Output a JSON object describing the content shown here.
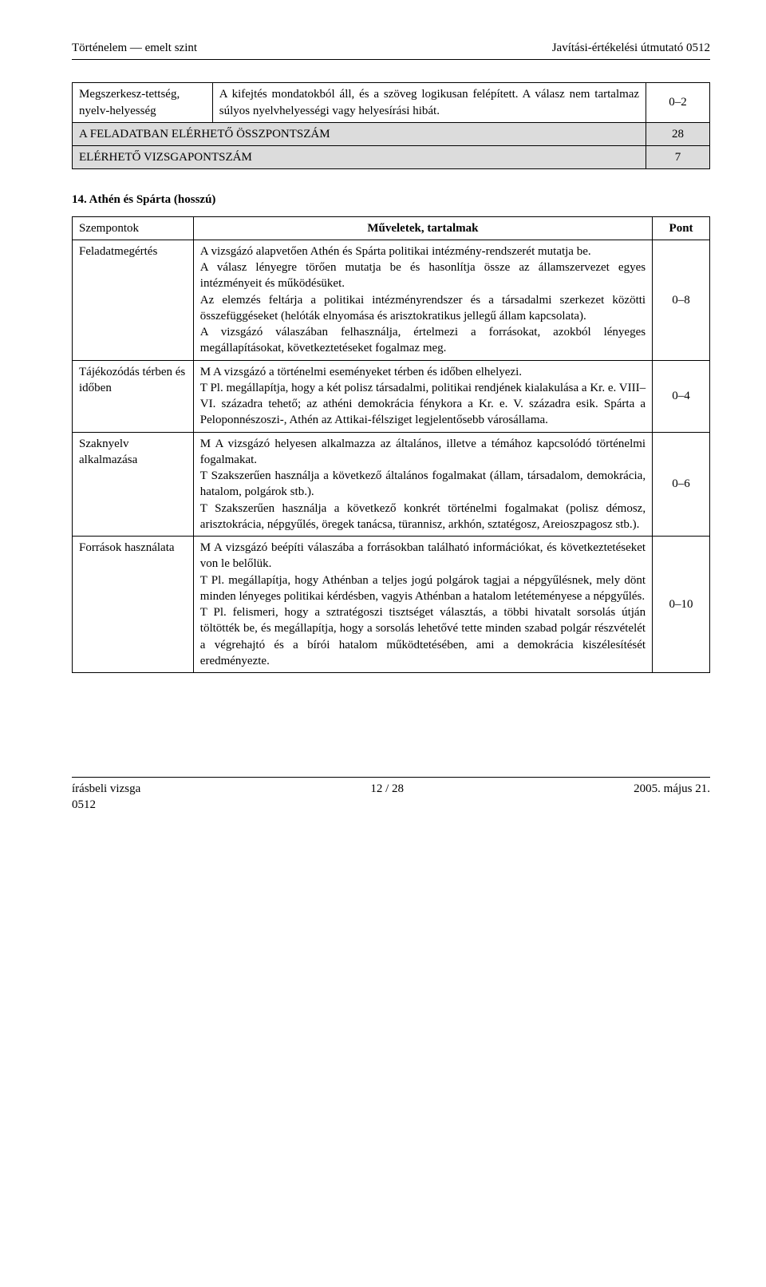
{
  "header": {
    "left": "Történelem — emelt szint",
    "right": "Javítási-értékelési útmutató 0512"
  },
  "table1": {
    "r1": {
      "col1": "Megszerkesz-tettség, nyelv-helyesség",
      "col2": "A kifejtés mondatokból áll, és a szöveg logikusan felépített. A válasz nem tartalmaz súlyos nyelvhelyességi vagy helyesírási hibát.",
      "col3": "0–2"
    },
    "r2": {
      "label": "A FELADATBAN ELÉRHETŐ ÖSSZPONTSZÁM",
      "val": "28"
    },
    "r3": {
      "label": "ELÉRHETŐ VIZSGAPONTSZÁM",
      "val": "7"
    }
  },
  "section_heading": "14. Athén és Spárta (hosszú)",
  "table2": {
    "head": {
      "c1": "Szempontok",
      "c2": "Műveletek, tartalmak",
      "c3": "Pont"
    },
    "rows": [
      {
        "c1": "Feladatmegértés",
        "c2": "A vizsgázó alapvetően Athén és Spárta politikai intézmény-rendszerét mutatja be.\nA válasz lényegre törően mutatja be és hasonlítja össze az államszervezet egyes intézményeit és működésüket.\nAz elemzés feltárja a politikai intézményrendszer és a társadalmi szerkezet közötti összefüggéseket (helóták elnyomása és arisztokratikus jellegű állam kapcsolata).\nA vizsgázó válaszában felhasználja, értelmezi a forrásokat, azokból lényeges megállapításokat, következtetéseket fogalmaz meg.",
        "c3": "0–8"
      },
      {
        "c1": "Tájékozódás térben és időben",
        "c2": "M A vizsgázó a történelmi eseményeket térben és időben elhelyezi.\nT Pl. megállapítja, hogy a két polisz társadalmi, politikai rendjének kialakulása a Kr. e. VIII–VI. századra tehető; az athéni demokrácia fénykora a Kr. e. V. századra esik. Spárta a Peloponnészoszi-, Athén az Attikai-félsziget legjelentősebb városállama.",
        "c3": "0–4"
      },
      {
        "c1": "Szaknyelv alkalmazása",
        "c2": "M A vizsgázó helyesen alkalmazza az általános, illetve a témához kapcsolódó történelmi fogalmakat.\nT Szakszerűen használja a következő általános fogalmakat (állam, társadalom, demokrácia, hatalom, polgárok stb.).\nT Szakszerűen használja a következő konkrét történelmi fogalmakat (polisz démosz, arisztokrácia, népgyűlés, öregek tanácsa, türannisz, arkhón, sztatégosz, Areioszpagosz stb.).",
        "c3": "0–6"
      },
      {
        "c1": "Források használata",
        "c2": "M A vizsgázó beépíti válaszába a forrásokban található információkat, és következtetéseket von le belőlük.\nT Pl. megállapítja, hogy Athénban a teljes jogú polgárok tagjai a népgyűlésnek, mely dönt minden lényeges politikai kérdésben, vagyis Athénban a hatalom letéteményese a népgyűlés.\nT Pl. felismeri, hogy a sztratégoszi tisztséget választás, a többi hivatalt sorsolás útján töltötték be, és megállapítja, hogy a sorsolás lehetővé tette minden szabad polgár részvételét a végrehajtó és a bírói hatalom működtetésében, ami a demokrácia kiszélesítését eredményezte.",
        "c3": "0–10"
      }
    ]
  },
  "footer": {
    "left1": "írásbeli vizsga",
    "left2": "0512",
    "center": "12 / 28",
    "right": "2005. május 21."
  }
}
